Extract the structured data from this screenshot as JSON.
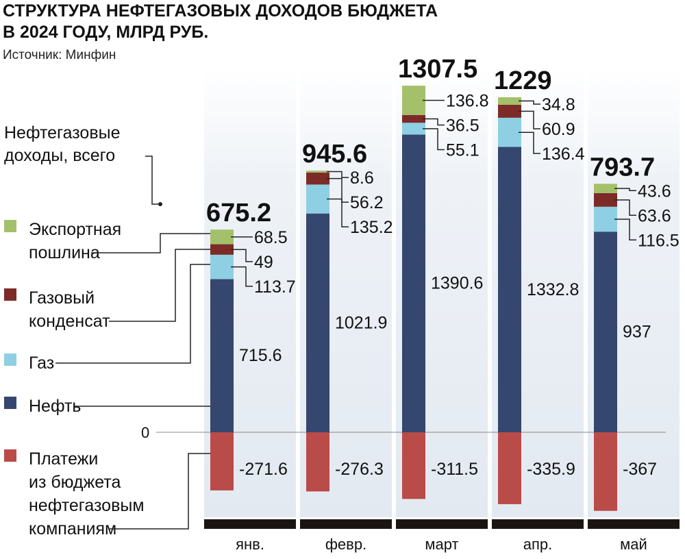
{
  "chart_data": {
    "type": "bar",
    "stacked": true,
    "title_lines": [
      "СТРУКТУРА НЕФТЕГАЗОВЫХ ДОХОДОВ БЮДЖЕТА",
      "В 2024 ГОДУ, МЛРД РУБ."
    ],
    "source": "Источник: Минфин",
    "total_label_lines": [
      "Нефтегазовые",
      "доходы, всего"
    ],
    "zero_label": "0",
    "categories": [
      "янв.",
      "февр.",
      "март",
      "апр.",
      "май"
    ],
    "totals": [
      "675.2",
      "945.6",
      "1307.5",
      "1229",
      "793.7"
    ],
    "series": [
      {
        "name": "Нефть",
        "legend_lines": [
          "Нефть"
        ],
        "color": "#35466f",
        "values": [
          715.6,
          1021.9,
          1390.6,
          1332.8,
          937
        ]
      },
      {
        "name": "Газ",
        "legend_lines": [
          "Газ"
        ],
        "color": "#8fcfe3",
        "values": [
          113.7,
          135.2,
          55.1,
          136.4,
          116.5
        ]
      },
      {
        "name": "Газовый конденсат",
        "legend_lines": [
          "Газовый",
          "конденсат"
        ],
        "color": "#7c2b27",
        "values": [
          49,
          56.2,
          36.5,
          60.9,
          63.6
        ]
      },
      {
        "name": "Экспортная пошлина",
        "legend_lines": [
          "Экспортная",
          "пошлина"
        ],
        "color": "#a4c06b",
        "values": [
          68.5,
          8.6,
          136.8,
          34.8,
          43.6
        ]
      },
      {
        "name": "Платежи из бюджета нефтегазовым компаниям",
        "legend_lines": [
          "Платежи",
          "из бюджета",
          "нефтегазовым",
          "компаниям"
        ],
        "color": "#b94b48",
        "values": [
          -271.6,
          -276.3,
          -311.5,
          -335.9,
          -367
        ]
      }
    ]
  }
}
